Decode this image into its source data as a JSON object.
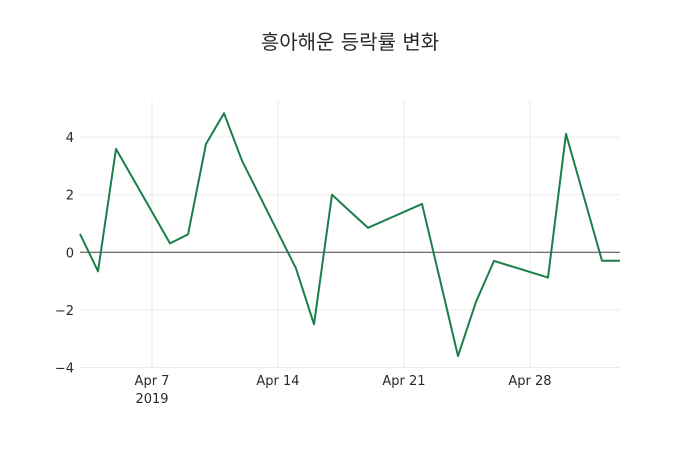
{
  "chart_data": {
    "type": "line",
    "title": "흥아해운 등락률 변화",
    "xlabel": "",
    "ylabel": "",
    "x_tick_labels": [
      "Apr 7",
      "Apr 14",
      "Apr 21",
      "Apr 28"
    ],
    "x_tick_sublabel": "2019",
    "y_ticks": [
      -4,
      -2,
      0,
      2,
      4
    ],
    "ylim": [
      -4.0,
      5.3
    ],
    "grid": true,
    "legend": "none",
    "line_color": "#1b7f4a",
    "series": [
      {
        "name": "등락률",
        "x": [
          "2019-04-03",
          "2019-04-04",
          "2019-04-05",
          "2019-04-08",
          "2019-04-09",
          "2019-04-10",
          "2019-04-11",
          "2019-04-12",
          "2019-04-15",
          "2019-04-16",
          "2019-04-17",
          "2019-04-18",
          "2019-04-19",
          "2019-04-22",
          "2019-04-23",
          "2019-04-24",
          "2019-04-25",
          "2019-04-26",
          "2019-04-29",
          "2019-04-30",
          "2019-05-02",
          "2019-05-03"
        ],
        "values": [
          0.64,
          -0.66,
          3.59,
          0.31,
          0.62,
          3.76,
          4.83,
          3.18,
          -0.56,
          -2.5,
          2.0,
          1.42,
          0.85,
          1.68,
          -0.96,
          -3.6,
          -1.72,
          -0.3,
          -0.88,
          4.11,
          -0.29,
          -0.29
        ]
      }
    ]
  }
}
